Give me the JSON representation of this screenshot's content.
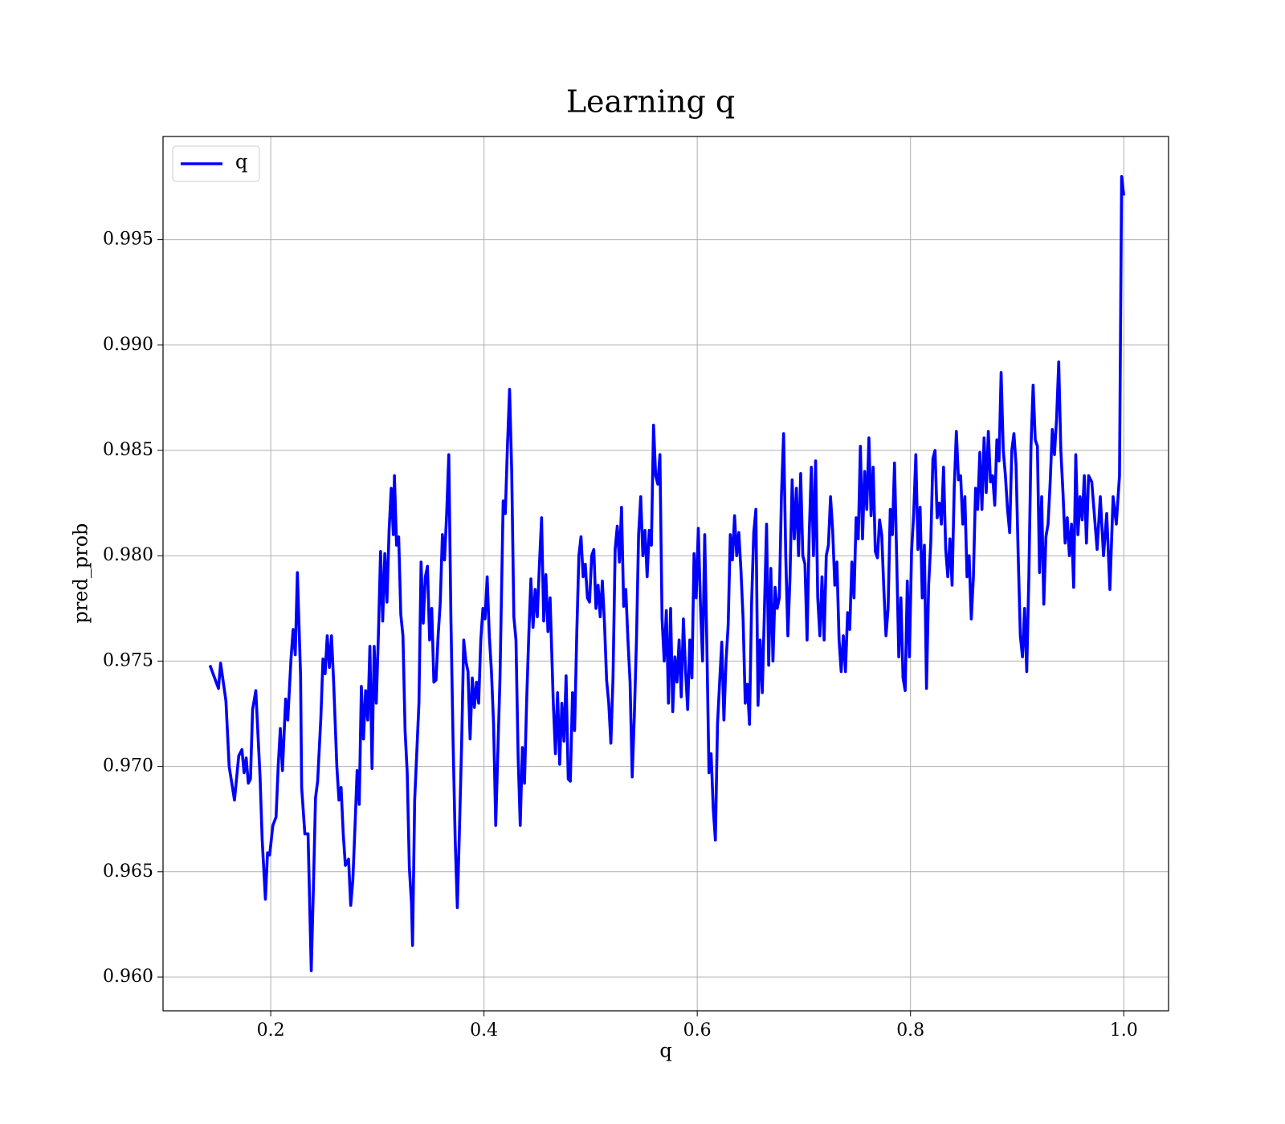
{
  "chart_data": {
    "type": "line",
    "title": "Learning q",
    "xlabel": "q",
    "ylabel": "pred_prob",
    "xlim": [
      0.099,
      1.042
    ],
    "ylim": [
      0.9584,
      0.9999
    ],
    "xticks": [
      0.2,
      0.4,
      0.6,
      0.8,
      {
        "value": 1,
        "label": "1.0"
      }
    ],
    "yticks": [
      {
        "value": 0.96,
        "label": "0.960"
      },
      0.965,
      {
        "value": 0.97,
        "label": "0.970"
      },
      0.975,
      {
        "value": 0.98,
        "label": "0.980"
      },
      0.985,
      {
        "value": 0.99,
        "label": "0.990"
      },
      0.995
    ],
    "grid": true,
    "legend": "upper left",
    "x": [
      0.143,
      0.151,
      0.153,
      0.158,
      0.161,
      0.166,
      0.17,
      0.173,
      0.175,
      0.177,
      0.179,
      0.181,
      0.183,
      0.186,
      0.19,
      0.192,
      0.195,
      0.197,
      0.199,
      0.202,
      0.205,
      0.207,
      0.209,
      0.211,
      0.214,
      0.216,
      0.219,
      0.221,
      0.223,
      0.225,
      0.228,
      0.229,
      0.232,
      0.235,
      0.238,
      0.24,
      0.242,
      0.244,
      0.247,
      0.249,
      0.251,
      0.253,
      0.255,
      0.257,
      0.259,
      0.262,
      0.264,
      0.266,
      0.268,
      0.27,
      0.273,
      0.275,
      0.277,
      0.279,
      0.281,
      0.283,
      0.285,
      0.287,
      0.289,
      0.291,
      0.293,
      0.295,
      0.297,
      0.299,
      0.301,
      0.303,
      0.305,
      0.307,
      0.309,
      0.311,
      0.313,
      0.315,
      0.316,
      0.318,
      0.32,
      0.322,
      0.324,
      0.326,
      0.328,
      0.33,
      0.332,
      0.333,
      0.335,
      0.337,
      0.339,
      0.341,
      0.343,
      0.345,
      0.347,
      0.349,
      0.351,
      0.353,
      0.355,
      0.357,
      0.359,
      0.361,
      0.363,
      0.365,
      0.367,
      0.369,
      0.371,
      0.373,
      0.375,
      0.377,
      0.379,
      0.381,
      0.383,
      0.385,
      0.387,
      0.389,
      0.391,
      0.393,
      0.395,
      0.397,
      0.399,
      0.401,
      0.403,
      0.405,
      0.407,
      0.409,
      0.411,
      0.413,
      0.415,
      0.418,
      0.42,
      0.422,
      0.424,
      0.426,
      0.428,
      0.43,
      0.432,
      0.434,
      0.436,
      0.438,
      0.44,
      0.442,
      0.444,
      0.446,
      0.448,
      0.45,
      0.452,
      0.454,
      0.456,
      0.458,
      0.46,
      0.462,
      0.465,
      0.467,
      0.469,
      0.471,
      0.473,
      0.475,
      0.477,
      0.479,
      0.481,
      0.483,
      0.485,
      0.487,
      0.489,
      0.491,
      0.493,
      0.495,
      0.497,
      0.499,
      0.501,
      0.503,
      0.505,
      0.507,
      0.509,
      0.511,
      0.513,
      0.515,
      0.517,
      0.519,
      0.521,
      0.523,
      0.525,
      0.527,
      0.529,
      0.531,
      0.533,
      0.535,
      0.537,
      0.539,
      0.541,
      0.543,
      0.545,
      0.547,
      0.549,
      0.551,
      0.553,
      0.555,
      0.557,
      0.559,
      0.561,
      0.563,
      0.565,
      0.567,
      0.569,
      0.571,
      0.573,
      0.575,
      0.577,
      0.579,
      0.581,
      0.583,
      0.585,
      0.587,
      0.589,
      0.591,
      0.593,
      0.595,
      0.597,
      0.599,
      0.601,
      0.603,
      0.605,
      0.607,
      0.609,
      0.611,
      0.613,
      0.615,
      0.617,
      0.619,
      0.621,
      0.623,
      0.625,
      0.627,
      0.629,
      0.631,
      0.633,
      0.635,
      0.637,
      0.639,
      0.641,
      0.643,
      0.645,
      0.647,
      0.649,
      0.651,
      0.653,
      0.655,
      0.657,
      0.659,
      0.661,
      0.663,
      0.665,
      0.667,
      0.669,
      0.671,
      0.673,
      0.675,
      0.677,
      0.679,
      0.681,
      0.683,
      0.685,
      0.687,
      0.689,
      0.691,
      0.693,
      0.695,
      0.697,
      0.699,
      0.701,
      0.703,
      0.705,
      0.707,
      0.709,
      0.711,
      0.713,
      0.715,
      0.717,
      0.719,
      0.721,
      0.723,
      0.725,
      0.727,
      0.729,
      0.731,
      0.733,
      0.735,
      0.737,
      0.739,
      0.741,
      0.743,
      0.745,
      0.747,
      0.749,
      0.751,
      0.753,
      0.755,
      0.757,
      0.759,
      0.761,
      0.763,
      0.765,
      0.767,
      0.769,
      0.771,
      0.773,
      0.775,
      0.777,
      0.779,
      0.781,
      0.783,
      0.785,
      0.787,
      0.789,
      0.791,
      0.793,
      0.795,
      0.797,
      0.799,
      0.801,
      0.803,
      0.805,
      0.807,
      0.809,
      0.811,
      0.813,
      0.815,
      0.817,
      0.819,
      0.821,
      0.823,
      0.825,
      0.827,
      0.829,
      0.831,
      0.833,
      0.835,
      0.837,
      0.839,
      0.841,
      0.843,
      0.845,
      0.847,
      0.849,
      0.851,
      0.853,
      0.855,
      0.857,
      0.859,
      0.861,
      0.863,
      0.865,
      0.867,
      0.869,
      0.871,
      0.873,
      0.875,
      0.877,
      0.879,
      0.881,
      0.883,
      0.885,
      0.887,
      0.889,
      0.891,
      0.893,
      0.895,
      0.897,
      0.899,
      0.901,
      0.903,
      0.905,
      0.907,
      0.909,
      0.911,
      0.913,
      0.915,
      0.917,
      0.919,
      0.921,
      0.923,
      0.925,
      0.927,
      0.929,
      0.931,
      0.933,
      0.935,
      0.937,
      0.939,
      0.941,
      0.943,
      0.945,
      0.947,
      0.949,
      0.951,
      0.953,
      0.955,
      0.957,
      0.959,
      0.961,
      0.963,
      0.965,
      0.967,
      0.97,
      0.975,
      0.978,
      0.981,
      0.984,
      0.987,
      0.99,
      0.993,
      0.996,
      0.998,
      1.0
    ],
    "series": [
      {
        "name": "q",
        "color": "#0000ff",
        "values": [
          0.9748,
          0.9737,
          0.9749,
          0.9731,
          0.97,
          0.9684,
          0.9705,
          0.9708,
          0.9697,
          0.9704,
          0.9692,
          0.9694,
          0.9727,
          0.9736,
          0.9695,
          0.9665,
          0.9637,
          0.9659,
          0.9658,
          0.9672,
          0.9676,
          0.97,
          0.9718,
          0.9698,
          0.9732,
          0.9722,
          0.9751,
          0.9765,
          0.9753,
          0.9792,
          0.9743,
          0.969,
          0.9668,
          0.9668,
          0.9603,
          0.9642,
          0.9685,
          0.9693,
          0.9723,
          0.9751,
          0.9744,
          0.9762,
          0.9747,
          0.9762,
          0.974,
          0.97,
          0.9684,
          0.969,
          0.9668,
          0.9653,
          0.9656,
          0.9634,
          0.9646,
          0.9671,
          0.9698,
          0.9682,
          0.9738,
          0.9713,
          0.9736,
          0.9722,
          0.9757,
          0.9699,
          0.9757,
          0.973,
          0.9763,
          0.9802,
          0.9769,
          0.9801,
          0.9778,
          0.9812,
          0.9832,
          0.981,
          0.9838,
          0.9805,
          0.9809,
          0.9772,
          0.9762,
          0.9717,
          0.9697,
          0.9652,
          0.9635,
          0.9615,
          0.9684,
          0.9707,
          0.973,
          0.9797,
          0.9768,
          0.979,
          0.9795,
          0.976,
          0.9775,
          0.974,
          0.9741,
          0.9762,
          0.9778,
          0.981,
          0.9798,
          0.982,
          0.9848,
          0.977,
          0.9712,
          0.9665,
          0.9633,
          0.967,
          0.971,
          0.976,
          0.975,
          0.9745,
          0.9713,
          0.9742,
          0.9728,
          0.974,
          0.973,
          0.976,
          0.9775,
          0.977,
          0.979,
          0.9762,
          0.9745,
          0.972,
          0.9672,
          0.9707,
          0.9742,
          0.9826,
          0.982,
          0.9852,
          0.9879,
          0.984,
          0.9771,
          0.976,
          0.9705,
          0.9672,
          0.9709,
          0.9692,
          0.9731,
          0.9762,
          0.9789,
          0.9766,
          0.9784,
          0.9771,
          0.9796,
          0.9818,
          0.9769,
          0.9791,
          0.9764,
          0.978,
          0.973,
          0.9706,
          0.9735,
          0.9701,
          0.973,
          0.9712,
          0.9743,
          0.9694,
          0.9693,
          0.9735,
          0.9717,
          0.9763,
          0.98,
          0.9809,
          0.979,
          0.9796,
          0.978,
          0.9778,
          0.98,
          0.9803,
          0.9775,
          0.9786,
          0.9771,
          0.9788,
          0.9768,
          0.9741,
          0.973,
          0.9711,
          0.9742,
          0.9803,
          0.9814,
          0.9797,
          0.9823,
          0.9776,
          0.9784,
          0.976,
          0.974,
          0.9695,
          0.9724,
          0.976,
          0.981,
          0.9828,
          0.98,
          0.9812,
          0.979,
          0.9812,
          0.9805,
          0.9862,
          0.9838,
          0.9834,
          0.9848,
          0.977,
          0.975,
          0.9774,
          0.973,
          0.9775,
          0.9726,
          0.9752,
          0.974,
          0.976,
          0.9733,
          0.977,
          0.9746,
          0.9727,
          0.976,
          0.9742,
          0.9801,
          0.978,
          0.9813,
          0.9777,
          0.975,
          0.981,
          0.9758,
          0.9697,
          0.9706,
          0.968,
          0.9665,
          0.972,
          0.974,
          0.9759,
          0.9722,
          0.975,
          0.9767,
          0.981,
          0.9798,
          0.9819,
          0.98,
          0.9811,
          0.9793,
          0.977,
          0.973,
          0.9739,
          0.972,
          0.9778,
          0.9811,
          0.9822,
          0.9729,
          0.976,
          0.9735,
          0.9774,
          0.9815,
          0.9748,
          0.9794,
          0.975,
          0.9785,
          0.9775,
          0.978,
          0.9829,
          0.9858,
          0.98,
          0.9762,
          0.979,
          0.9836,
          0.9808,
          0.9832,
          0.98,
          0.9839,
          0.98,
          0.9796,
          0.976,
          0.981,
          0.9842,
          0.98,
          0.9845,
          0.978,
          0.9762,
          0.979,
          0.976,
          0.98,
          0.9805,
          0.9828,
          0.9812,
          0.9786,
          0.9797,
          0.976,
          0.9745,
          0.9762,
          0.9745,
          0.9773,
          0.9765,
          0.9797,
          0.978,
          0.9818,
          0.9808,
          0.9852,
          0.9808,
          0.984,
          0.9822,
          0.9856,
          0.9819,
          0.9842,
          0.9802,
          0.9799,
          0.9817,
          0.981,
          0.9784,
          0.9762,
          0.9775,
          0.9822,
          0.981,
          0.9844,
          0.98,
          0.9752,
          0.978,
          0.9742,
          0.9736,
          0.9788,
          0.9752,
          0.9802,
          0.982,
          0.9848,
          0.9803,
          0.9823,
          0.978,
          0.9805,
          0.9737,
          0.9786,
          0.9806,
          0.9846,
          0.985,
          0.9818,
          0.9825,
          0.9815,
          0.9842,
          0.9803,
          0.979,
          0.9808,
          0.9786,
          0.9832,
          0.9859,
          0.9836,
          0.9838,
          0.9815,
          0.9828,
          0.979,
          0.98,
          0.977,
          0.979,
          0.9832,
          0.9822,
          0.9849,
          0.9822,
          0.9856,
          0.983,
          0.9859,
          0.9835,
          0.9838,
          0.9824,
          0.9855,
          0.9845,
          0.9887,
          0.985,
          0.9838,
          0.9822,
          0.9811,
          0.985,
          0.9858,
          0.9843,
          0.98,
          0.9762,
          0.9752,
          0.9775,
          0.9745,
          0.979,
          0.9852,
          0.9881,
          0.9855,
          0.9852,
          0.9792,
          0.9828,
          0.9777,
          0.9809,
          0.9815,
          0.9835,
          0.986,
          0.9848,
          0.9865,
          0.9892,
          0.985,
          0.983,
          0.9806,
          0.9818,
          0.98,
          0.9815,
          0.9785,
          0.9848,
          0.981,
          0.9828,
          0.9817,
          0.9838,
          0.9806,
          0.9838,
          0.9835,
          0.9803,
          0.9828,
          0.98,
          0.982,
          0.9784,
          0.9828,
          0.9815,
          0.9838,
          0.998,
          0.9971
        ]
      }
    ]
  }
}
